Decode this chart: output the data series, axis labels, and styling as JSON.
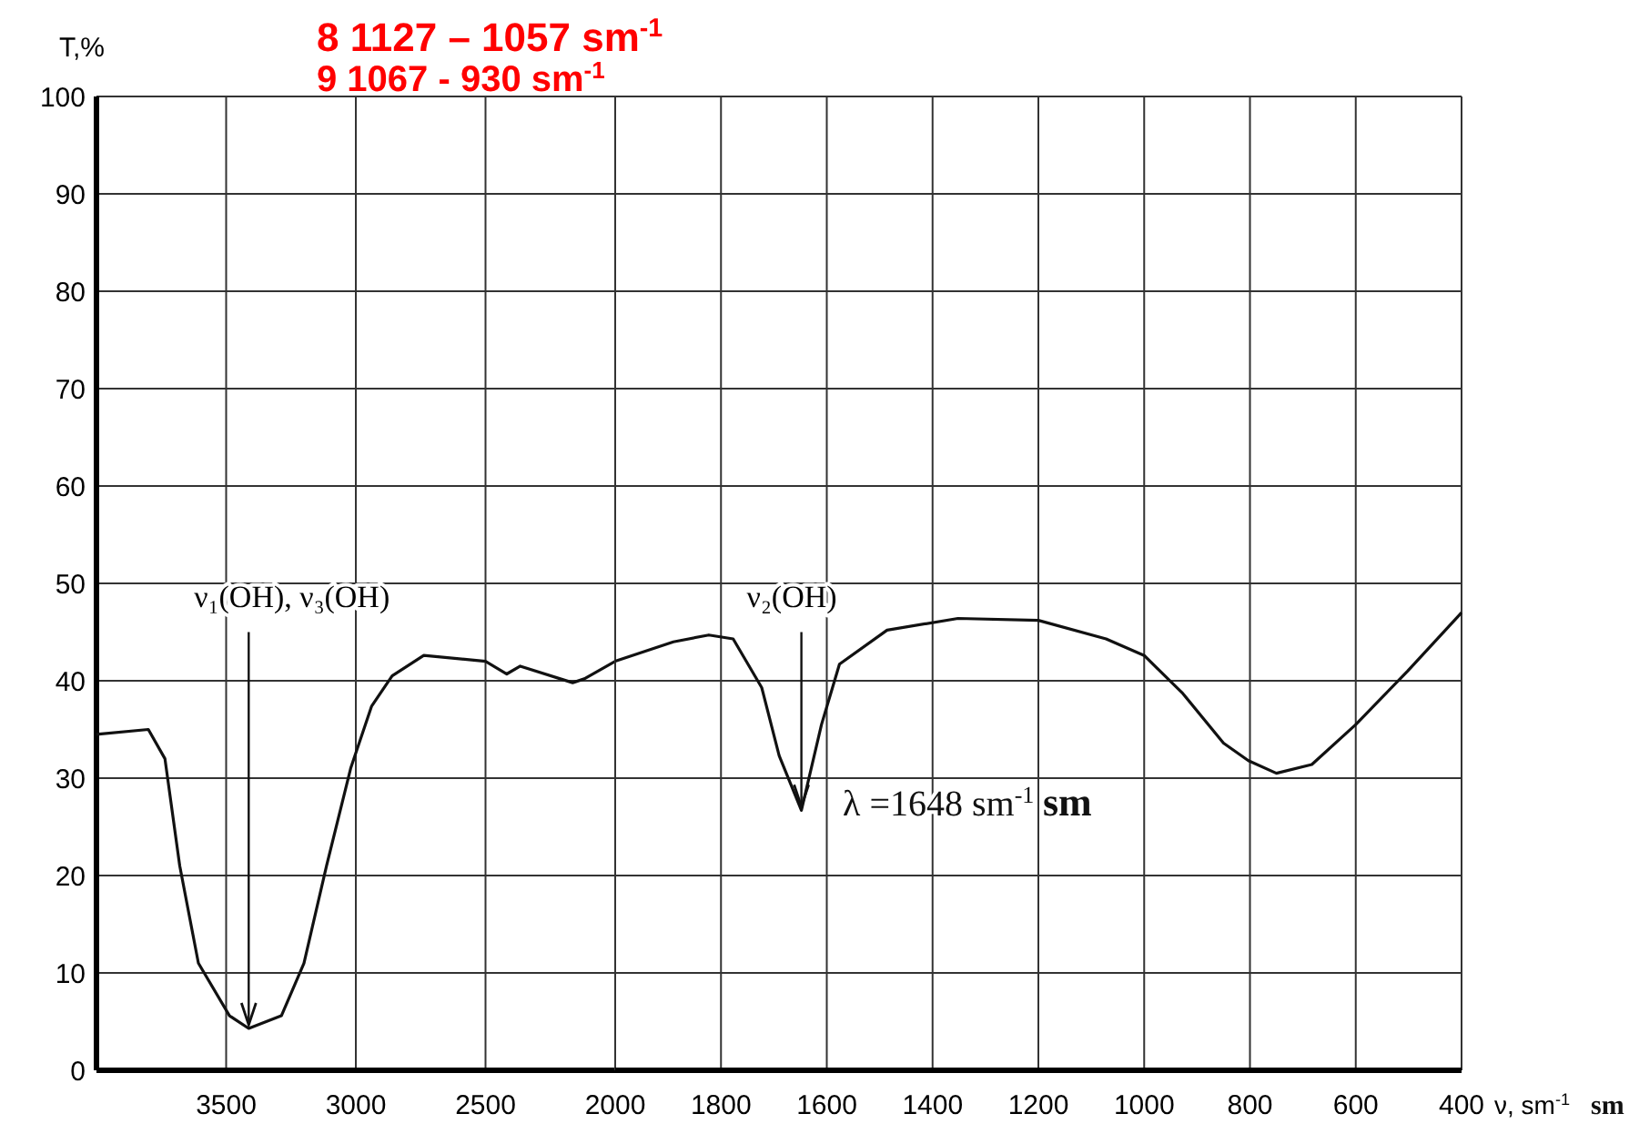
{
  "chart_data": [
    {
      "type": "line",
      "ylabel": "T,%",
      "xlim": [
        4000,
        2000
      ],
      "xticks": [
        3500,
        3000,
        2500
      ],
      "ylim": [
        0,
        100
      ],
      "yticks": [
        0,
        10,
        20,
        30,
        40,
        50,
        60,
        70,
        80,
        90,
        100
      ],
      "grid": true,
      "x": [
        4000,
        3800,
        3736,
        3679,
        3607,
        3487,
        3413,
        3287,
        3200,
        3113,
        3020,
        2939,
        2860,
        2738,
        2500,
        2418,
        2366,
        2164,
        2119,
        2000
      ],
      "series": [
        {
          "color": "#111111",
          "values": [
            34.5,
            35,
            32,
            21,
            11,
            5.6,
            4.3,
            5.6,
            11,
            21,
            31,
            37.4,
            40.5,
            42.6,
            42,
            40.7,
            41.5,
            39.8,
            40.2,
            42
          ]
        }
      ],
      "annotations": [
        "8 1127 – 1057 sm$^{-1}$",
        "9 1067 - 930 sm$^{-1}$",
        {
          "text": "ν₁(OH), ν₃(OH)",
          "x": 3413,
          "y": 4.3
        }
      ]
    },
    {
      "type": "line",
      "xlabel": "ν, sm$^{-1}$",
      "tick_labels": "x",
      "xlim": [
        2000,
        400
      ],
      "xticks": [
        2000,
        1800,
        1600,
        1400,
        1200,
        1000,
        800,
        600,
        400
      ],
      "ylim": [
        0,
        100
      ],
      "yticks": [
        0,
        10,
        20,
        30,
        40,
        50,
        60,
        70,
        80,
        90,
        100
      ],
      "grid": true,
      "x": [
        2000,
        1890,
        1823,
        1777,
        1723,
        1690,
        1648,
        1610,
        1576,
        1486,
        1352,
        1200,
        1072,
        1000,
        927,
        850,
        803,
        750,
        683,
        600,
        502,
        400
      ],
      "series": [
        {
          "color": "#111111",
          "values": [
            42,
            44,
            44.7,
            44.3,
            39.3,
            32.3,
            26.7,
            35.5,
            41.7,
            45.2,
            46.4,
            46.2,
            44.3,
            42.6,
            38.7,
            33.6,
            31.8,
            30.5,
            31.4,
            35.5,
            41,
            47
          ]
        }
      ],
      "annotations": [
        {
          "text": "ν₂(OH)",
          "x": 1648,
          "y": 26.7
        },
        "λ =1648 sm$^{-1}$",
        "sm",
        "sm"
      ]
    }
  ]
}
